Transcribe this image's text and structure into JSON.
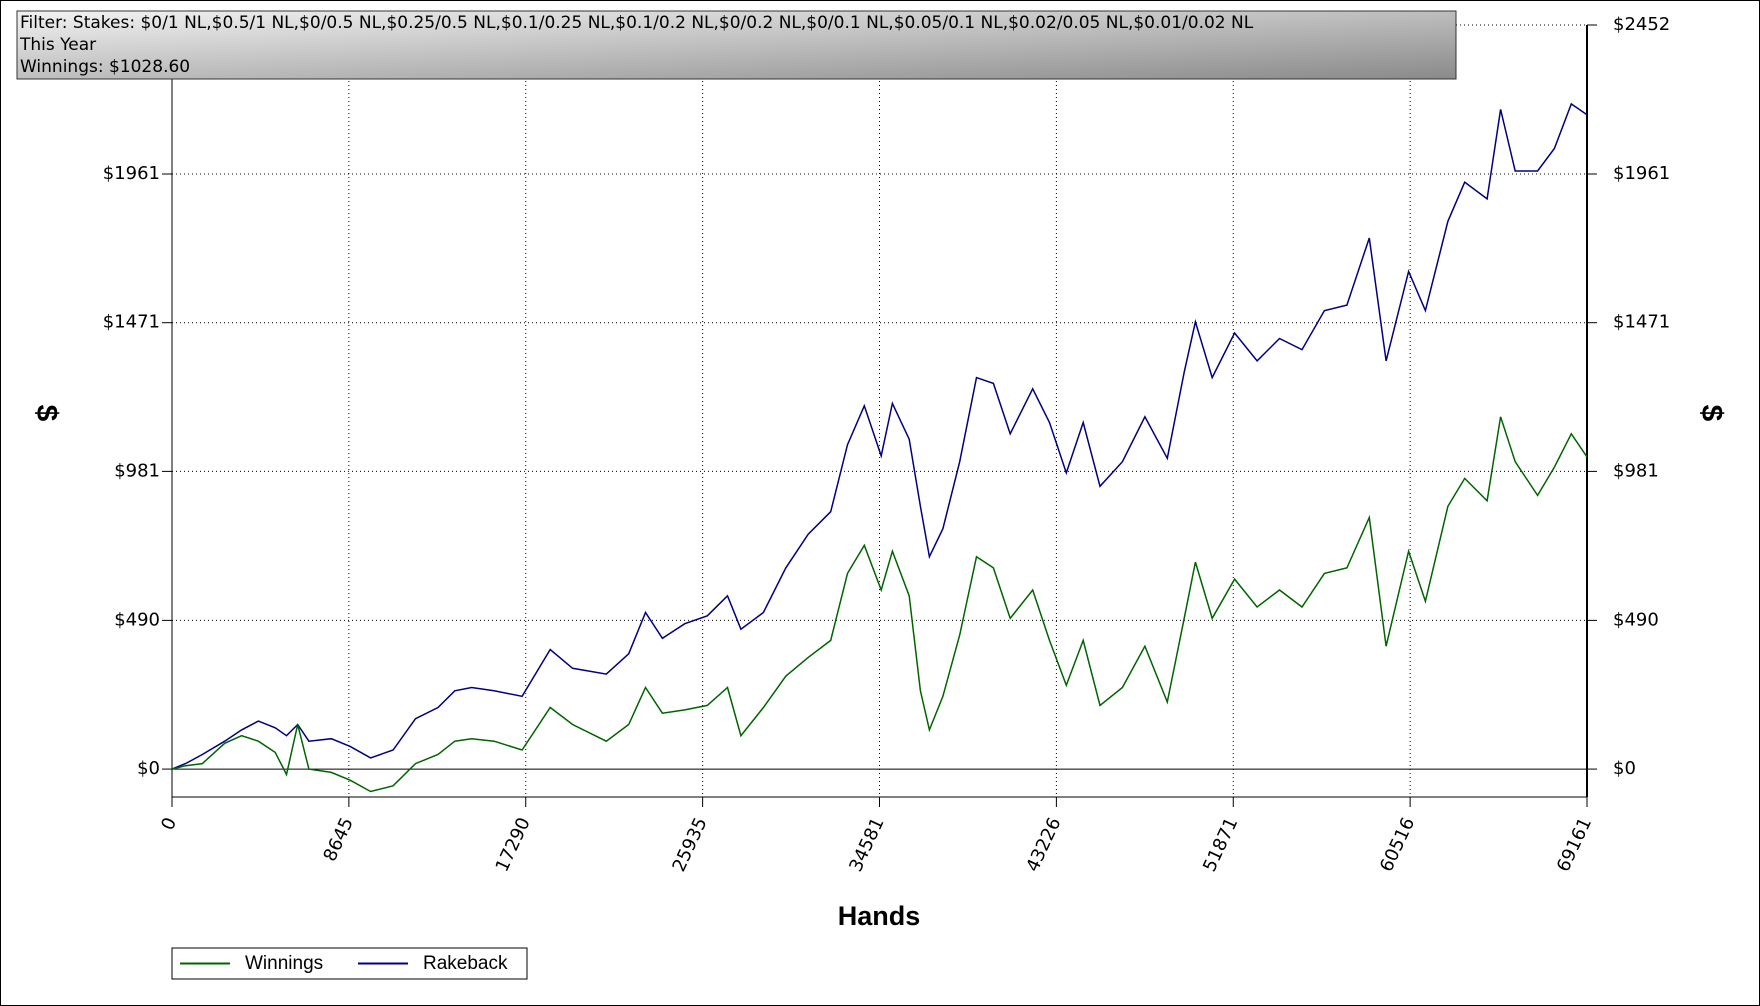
{
  "chart_data": {
    "type": "line",
    "title": "Filter: Stakes: $0/1 NL,$0.5/1 NL,$0/0.5 NL,$0.25/0.5 NL,$0.1/0.25 NL,$0.1/0.2 NL,$0/0.2 NL,$0/0.1 NL,$0.05/0.1 NL,$0.02/0.05 NL,$0.01/0.02 NL",
    "subtitle": "This Year",
    "annotation": "Winnings: $1028.60",
    "x_label": "Hands",
    "y_label": "$",
    "y2_label": "$",
    "x": [
      0,
      658,
      1481,
      2578,
      3400,
      4223,
      5046,
      5594,
      6143,
      6691,
      7788,
      8721,
      9708,
      10805,
      11902,
      12999,
      13821,
      14644,
      15741,
      17112,
      18483,
      19580,
      21225,
      22322,
      23145,
      23968,
      25065,
      26162,
      27149,
      27807,
      28904,
      30001,
      31098,
      32195,
      33017,
      33840,
      34663,
      35211,
      36034,
      36582,
      37021,
      37679,
      38502,
      39324,
      40147,
      40970,
      42067,
      42890,
      43712,
      44535,
      45358,
      46455,
      47552,
      48649,
      49471,
      50020,
      50842,
      51939,
      53036,
      54133,
      55230,
      56327,
      57424,
      58521,
      59343,
      60440,
      61263,
      62360,
      63183,
      64280,
      64938,
      65651,
      66748,
      67570,
      68393,
      69161
    ],
    "series": [
      {
        "name": "Winnings",
        "color": "#006400",
        "values": [
          0,
          11,
          18,
          85,
          110,
          92,
          55,
          -18,
          147,
          0,
          -11,
          -37,
          -74,
          -55,
          18,
          48,
          92,
          100,
          92,
          63,
          203,
          147,
          92,
          147,
          269,
          184,
          195,
          210,
          269,
          110,
          203,
          306,
          368,
          424,
          645,
          737,
          590,
          718,
          571,
          258,
          129,
          240,
          442,
          700,
          663,
          497,
          590,
          424,
          276,
          424,
          210,
          269,
          405,
          221,
          497,
          682,
          497,
          626,
          534,
          590,
          534,
          645,
          663,
          829,
          405,
          718,
          553,
          866,
          958,
          884,
          1161,
          1013,
          902,
          995,
          1105,
          1028.6
        ]
      },
      {
        "name": "Rakeback",
        "color": "#000080",
        "values": [
          0,
          18,
          48,
          92,
          129,
          158,
          136,
          110,
          147,
          92,
          100,
          74,
          37,
          63,
          166,
          203,
          258,
          269,
          258,
          240,
          394,
          332,
          313,
          380,
          516,
          431,
          479,
          505,
          571,
          461,
          516,
          663,
          774,
          848,
          1069,
          1197,
          1032,
          1205,
          1087,
          866,
          700,
          792,
          1013,
          1290,
          1271,
          1105,
          1253,
          1142,
          976,
          1142,
          932,
          1013,
          1161,
          1024,
          1308,
          1474,
          1290,
          1437,
          1345,
          1419,
          1382,
          1511,
          1529,
          1750,
          1345,
          1640,
          1511,
          1805,
          1934,
          1879,
          2174,
          1971,
          1971,
          2045,
          2192,
          2156
        ]
      }
    ],
    "xlim": [
      0,
      69161
    ],
    "xticks": [
      0,
      8645,
      17290,
      25935,
      34581,
      43226,
      51871,
      60516,
      69161
    ],
    "ylim": [
      -92,
      2452
    ],
    "yticks": [
      {
        "value": 0,
        "label": "$0"
      },
      {
        "value": 490,
        "label": "$490"
      },
      {
        "value": 981,
        "label": "$981"
      },
      {
        "value": 1471,
        "label": "$1471"
      },
      {
        "value": 1961,
        "label": "$1961"
      },
      {
        "value": 2452,
        "label": "$2452"
      }
    ],
    "grid": true,
    "legend": "bottom-left"
  }
}
